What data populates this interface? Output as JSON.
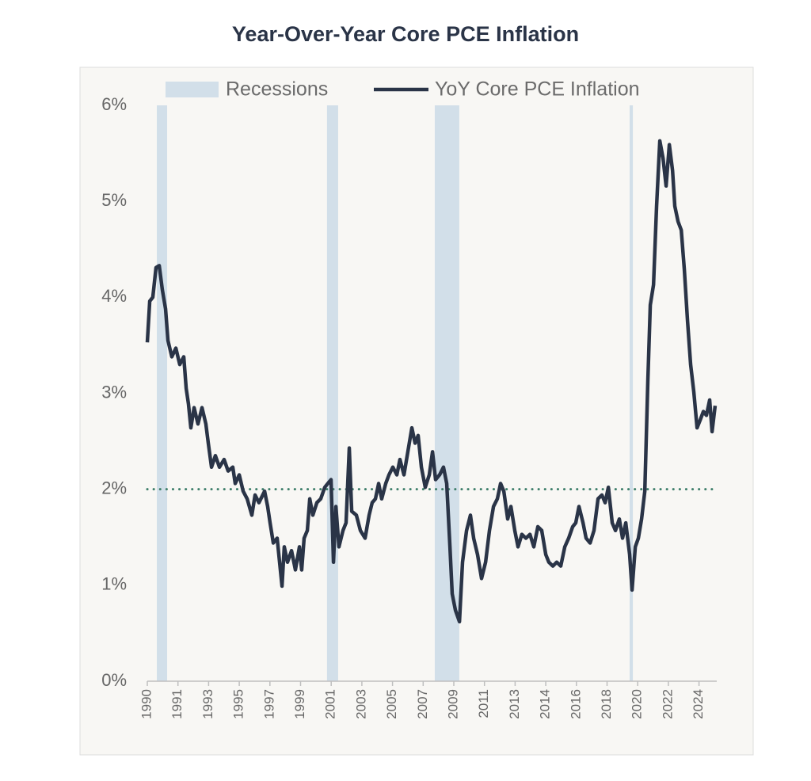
{
  "chart_data": {
    "type": "line",
    "title": "Year-Over-Year Core PCE Inflation",
    "legend": "top",
    "xlim": [
      1990,
      2025.3
    ],
    "ylim": [
      0,
      6
    ],
    "yticks": [
      {
        "value": 0,
        "label": "0%"
      },
      {
        "value": 1,
        "label": "1%"
      },
      {
        "value": 2,
        "label": "2%"
      },
      {
        "value": 3,
        "label": "3%"
      },
      {
        "value": 4,
        "label": "4%"
      },
      {
        "value": 5,
        "label": "5%"
      },
      {
        "value": 6,
        "label": "6%"
      }
    ],
    "xticks": [
      {
        "value": 1990,
        "label": "1990"
      },
      {
        "value": 1991.9,
        "label": "1991"
      },
      {
        "value": 1993.8,
        "label": "1993"
      },
      {
        "value": 1995.7,
        "label": "1995"
      },
      {
        "value": 1997.6,
        "label": "1997"
      },
      {
        "value": 1999.5,
        "label": "1999"
      },
      {
        "value": 2001.4,
        "label": "2001"
      },
      {
        "value": 2003.3,
        "label": "2003"
      },
      {
        "value": 2005.2,
        "label": "2005"
      },
      {
        "value": 2007.1,
        "label": "2007"
      },
      {
        "value": 2009,
        "label": "2009"
      },
      {
        "value": 2010.9,
        "label": "2011"
      },
      {
        "value": 2012.8,
        "label": "2013"
      },
      {
        "value": 2014.7,
        "label": "2014"
      },
      {
        "value": 2016.6,
        "label": "2016"
      },
      {
        "value": 2018.5,
        "label": "2018"
      },
      {
        "value": 2020.4,
        "label": "2020"
      },
      {
        "value": 2022.3,
        "label": "2022"
      },
      {
        "value": 2024.2,
        "label": "2024"
      }
    ],
    "reference_line": {
      "value": 2,
      "color": "#3f7f6b"
    },
    "x": [
      1990.0,
      1990.15,
      1990.34,
      1990.54,
      1990.74,
      1990.93,
      1991.13,
      1991.28,
      1991.52,
      1991.77,
      1992.01,
      1992.26,
      1992.41,
      1992.55,
      1992.7,
      1992.9,
      1993.14,
      1993.39,
      1993.63,
      1993.78,
      1993.98,
      1994.22,
      1994.47,
      1994.76,
      1995.01,
      1995.3,
      1995.45,
      1995.7,
      1995.94,
      1996.19,
      1996.48,
      1996.68,
      1996.92,
      1997.27,
      1997.46,
      1997.61,
      1997.81,
      1998.05,
      1998.2,
      1998.35,
      1998.49,
      1998.69,
      1998.94,
      1999.18,
      1999.43,
      1999.57,
      1999.72,
      1999.92,
      2000.07,
      2000.26,
      2000.51,
      2000.75,
      2001.0,
      2001.19,
      2001.39,
      2001.54,
      2001.69,
      2001.88,
      2002.13,
      2002.32,
      2002.52,
      2002.67,
      2002.96,
      2003.21,
      2003.5,
      2003.75,
      2003.94,
      2004.14,
      2004.34,
      2004.53,
      2004.78,
      2004.98,
      2005.22,
      2005.47,
      2005.66,
      2005.91,
      2006.15,
      2006.4,
      2006.6,
      2006.79,
      2006.99,
      2007.23,
      2007.48,
      2007.68,
      2007.87,
      2008.12,
      2008.36,
      2008.56,
      2008.76,
      2008.9,
      2009.1,
      2009.35,
      2009.54,
      2009.79,
      2010.03,
      2010.23,
      2010.47,
      2010.72,
      2010.97,
      2011.21,
      2011.46,
      2011.7,
      2011.9,
      2012.1,
      2012.34,
      2012.54,
      2012.78,
      2012.98,
      2013.22,
      2013.47,
      2013.72,
      2013.96,
      2014.21,
      2014.45,
      2014.7,
      2014.89,
      2015.14,
      2015.38,
      2015.63,
      2015.88,
      2016.12,
      2016.37,
      2016.56,
      2016.76,
      2017.01,
      2017.2,
      2017.45,
      2017.69,
      2017.94,
      2018.18,
      2018.38,
      2018.58,
      2018.82,
      2019.02,
      2019.26,
      2019.46,
      2019.66,
      2019.9,
      2020.05,
      2020.25,
      2020.44,
      2020.64,
      2020.84,
      2021.03,
      2021.18,
      2021.38,
      2021.57,
      2021.77,
      2021.97,
      2022.16,
      2022.36,
      2022.56,
      2022.7,
      2022.9,
      2023.1,
      2023.29,
      2023.49,
      2023.68,
      2023.88,
      2024.08,
      2024.27,
      2024.47,
      2024.66,
      2024.86,
      2025.01,
      2025.2
    ],
    "series": [
      {
        "name": "Recessions",
        "color": "#d2dfe9",
        "ranges": [
          [
            1990.59,
            1991.23
          ],
          [
            2001.14,
            2001.83
          ],
          [
            2007.82,
            2009.34
          ],
          [
            2019.9,
            2020.1
          ]
        ]
      },
      {
        "name": "YoY Core PCE Inflation",
        "color": "#2a3447",
        "values": [
          3.53,
          3.96,
          4.0,
          4.31,
          4.33,
          4.08,
          3.88,
          3.55,
          3.38,
          3.47,
          3.3,
          3.38,
          3.05,
          2.89,
          2.64,
          2.85,
          2.68,
          2.85,
          2.68,
          2.48,
          2.23,
          2.35,
          2.23,
          2.31,
          2.19,
          2.23,
          2.06,
          2.15,
          1.98,
          1.9,
          1.73,
          1.94,
          1.86,
          1.98,
          1.82,
          1.65,
          1.44,
          1.49,
          1.24,
          0.99,
          1.4,
          1.24,
          1.36,
          1.16,
          1.4,
          1.16,
          1.49,
          1.57,
          1.9,
          1.73,
          1.86,
          1.9,
          2.02,
          2.06,
          2.1,
          1.24,
          1.82,
          1.4,
          1.57,
          1.65,
          2.43,
          1.77,
          1.73,
          1.57,
          1.49,
          1.73,
          1.86,
          1.9,
          2.06,
          1.9,
          2.06,
          2.15,
          2.23,
          2.15,
          2.31,
          2.15,
          2.39,
          2.64,
          2.48,
          2.56,
          2.23,
          2.02,
          2.15,
          2.39,
          2.1,
          2.15,
          2.23,
          2.06,
          1.4,
          0.91,
          0.74,
          0.62,
          1.24,
          1.57,
          1.73,
          1.49,
          1.32,
          1.07,
          1.24,
          1.57,
          1.82,
          1.9,
          2.06,
          1.98,
          1.69,
          1.82,
          1.57,
          1.4,
          1.53,
          1.49,
          1.53,
          1.4,
          1.61,
          1.57,
          1.32,
          1.24,
          1.2,
          1.24,
          1.2,
          1.4,
          1.49,
          1.61,
          1.65,
          1.82,
          1.65,
          1.49,
          1.44,
          1.57,
          1.9,
          1.94,
          1.86,
          2.02,
          1.65,
          1.57,
          1.69,
          1.49,
          1.65,
          1.32,
          0.95,
          1.4,
          1.49,
          1.69,
          1.98,
          3.14,
          3.92,
          4.13,
          4.95,
          5.63,
          5.45,
          5.16,
          5.59,
          5.32,
          4.95,
          4.79,
          4.7,
          4.29,
          3.75,
          3.3,
          3.01,
          2.64,
          2.72,
          2.81,
          2.77,
          2.93,
          2.6,
          2.87
        ]
      }
    ]
  }
}
